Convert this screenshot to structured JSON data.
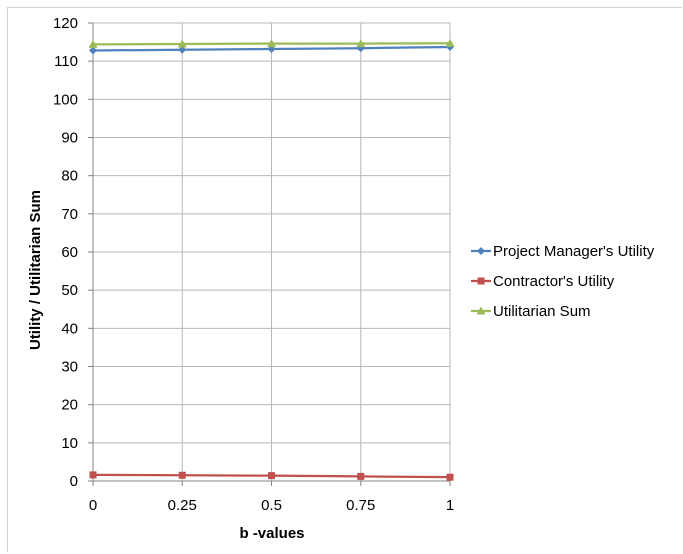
{
  "chart_data": {
    "type": "line",
    "x": [
      0,
      0.25,
      0.5,
      0.75,
      1
    ],
    "x_tick_labels": [
      "0",
      "0.25",
      "0.5",
      "0.75",
      "1"
    ],
    "y_ticks": [
      0,
      10,
      20,
      30,
      40,
      50,
      60,
      70,
      80,
      90,
      100,
      110,
      120
    ],
    "xlabel": "b -values",
    "ylabel": "Utility / Utilitarian Sum",
    "xlim": [
      0,
      1
    ],
    "ylim": [
      0,
      120
    ],
    "grid": true,
    "legend_position": "right",
    "series": [
      {
        "name": "Project Manager's Utility",
        "color": "#4f81bd",
        "marker": "diamond",
        "values": [
          112.8,
          113.0,
          113.2,
          113.4,
          113.7
        ]
      },
      {
        "name": "Contractor's Utility",
        "color": "#c0504d",
        "marker": "square",
        "values": [
          1.6,
          1.5,
          1.4,
          1.2,
          1.0
        ]
      },
      {
        "name": "Utilitarian Sum",
        "color": "#9bbb59",
        "marker": "triangle",
        "values": [
          114.4,
          114.5,
          114.6,
          114.6,
          114.7
        ]
      }
    ]
  }
}
